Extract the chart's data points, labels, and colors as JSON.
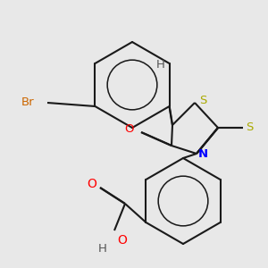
{
  "bg_color": "#e8e8e8",
  "bond_color": "#1a1a1a",
  "bond_width": 1.5,
  "dbo": 0.12,
  "atom_colors": {
    "Br": "#cc6600",
    "S": "#aaaa00",
    "N": "#0000ff",
    "O": "#ff0000",
    "H": "#555555",
    "C": "#1a1a1a"
  },
  "font_size": 9.5
}
